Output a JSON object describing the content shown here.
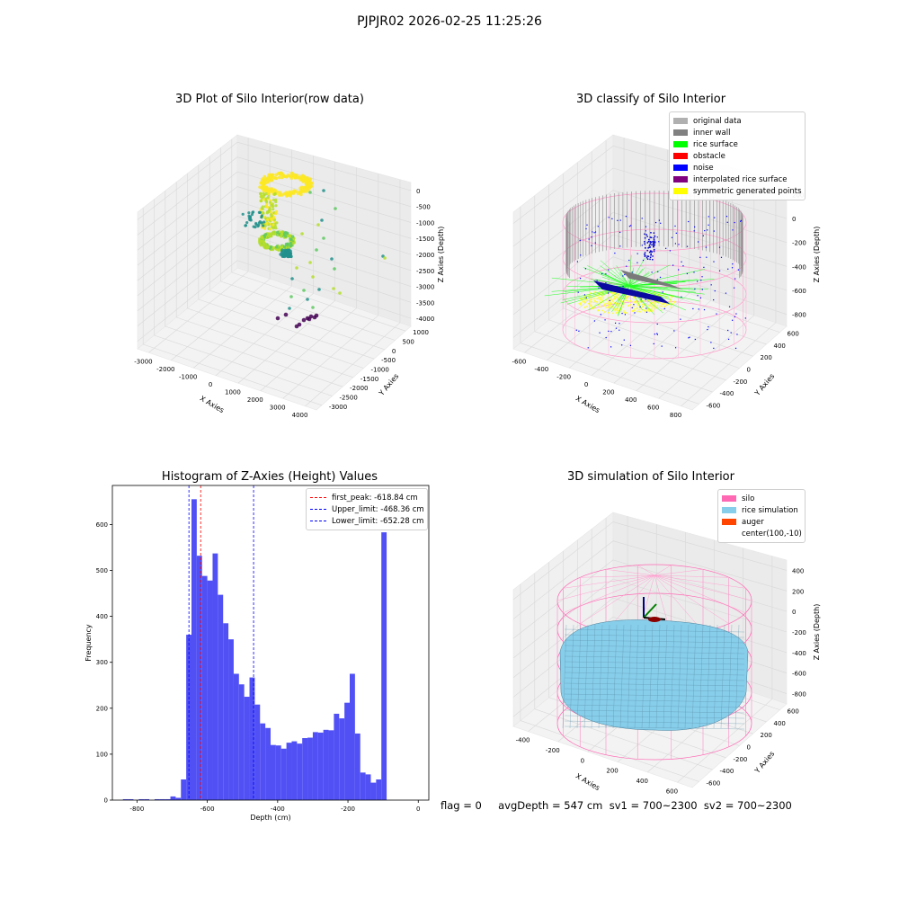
{
  "suptitle": "PJPJR02 2026-02-25 11:25:26",
  "status_line": "flag = 0     avgDepth = 547 cm  sv1 = 700~2300  sv2 = 700~2300",
  "chart_data": [
    {
      "type": "scatter",
      "title": "3D Plot of Silo Interior(row data)",
      "xlabel": "X Axies",
      "ylabel": "Y Axies",
      "zlabel": "Z Axies (Depth)",
      "xticks": [
        "-3000",
        "-2000",
        "-1000",
        "0",
        "1000",
        "2000",
        "3000",
        "4000"
      ],
      "yticks": [
        "1000",
        "500",
        "0",
        "-500",
        "-1000",
        "-1500",
        "-2000",
        "-2500",
        "-3000"
      ],
      "zticks": [
        "0",
        "-500",
        "-1000",
        "-1500",
        "-2000",
        "-2500",
        "-3000",
        "-3500",
        "-4000"
      ],
      "xlim": [
        -3000,
        4000
      ],
      "ylim": [
        -3000,
        1000
      ],
      "zlim": [
        -4000,
        0
      ],
      "colormap": "viridis"
    },
    {
      "type": "scatter",
      "title": "3D classify of Silo Interior",
      "xlabel": "X Axies",
      "ylabel": "Y Axies",
      "zlabel": "Z Axies (Depth)",
      "xticks": [
        "-600",
        "-400",
        "-200",
        "0",
        "200",
        "400",
        "600",
        "800"
      ],
      "yticks": [
        "600",
        "400",
        "200",
        "0",
        "-200",
        "-400",
        "-600"
      ],
      "zticks": [
        "200",
        "0",
        "-200",
        "-400",
        "-600",
        "-800"
      ],
      "legend": [
        {
          "label": "original data",
          "color": "#b0b0b0"
        },
        {
          "label": "inner wall",
          "color": "#808080"
        },
        {
          "label": "rice surface",
          "color": "#00ff00"
        },
        {
          "label": "obstacle",
          "color": "#ff0000"
        },
        {
          "label": "noise",
          "color": "#0000ff"
        },
        {
          "label": "interpolated rice surface",
          "color": "#800080"
        },
        {
          "label": "symmetric generated points",
          "color": "#ffff00"
        }
      ]
    },
    {
      "type": "bar",
      "title": "Histogram of Z-Axies (Height) Values",
      "xlabel": "Depth (cm)",
      "ylabel": "Frequency",
      "xlim": [
        -870,
        30
      ],
      "ylim": [
        0,
        685
      ],
      "xticks": [
        -800,
        -600,
        -400,
        -200,
        0
      ],
      "yticks": [
        0,
        100,
        200,
        300,
        400,
        500,
        600
      ],
      "bar_color": "#5050f5",
      "bin_start": -840,
      "bin_width": 15,
      "values": [
        2,
        2,
        0,
        2,
        2,
        0,
        2,
        2,
        2,
        8,
        5,
        45,
        360,
        655,
        532,
        488,
        478,
        537,
        447,
        385,
        350,
        275,
        252,
        225,
        267,
        208,
        167,
        157,
        120,
        119,
        112,
        125,
        128,
        123,
        135,
        136,
        148,
        147,
        153,
        152,
        188,
        178,
        212,
        275,
        145,
        60,
        56,
        38,
        45,
        583
      ],
      "vlines": [
        {
          "label": "first_peak: -618.84 cm",
          "x": -618.84,
          "color": "#ff0000"
        },
        {
          "label": "Upper_limit: -468.36 cm",
          "x": -468.36,
          "color": "#0000ff"
        },
        {
          "label": "Lower_limit: -652.28 cm",
          "x": -652.28,
          "color": "#0000ff"
        }
      ]
    },
    {
      "type": "surface",
      "title": "3D simulation of Silo Interior",
      "xlabel": "X Axies",
      "ylabel": "Y Axies",
      "zlabel": "Z Axies (Depth)",
      "xticks": [
        "-400",
        "-200",
        "0",
        "200",
        "400",
        "600"
      ],
      "yticks": [
        "600",
        "400",
        "200",
        "0",
        "-200",
        "-400",
        "-600"
      ],
      "zticks": [
        "400",
        "200",
        "0",
        "-200",
        "-400",
        "-600",
        "-800"
      ],
      "legend": [
        {
          "label": "silo",
          "color": "#ff69b4"
        },
        {
          "label": "rice simulation",
          "color": "#87ceeb"
        },
        {
          "label": "auger",
          "color": "#ff4500"
        },
        {
          "label": "center(100,-10)",
          "color": ""
        }
      ]
    }
  ]
}
